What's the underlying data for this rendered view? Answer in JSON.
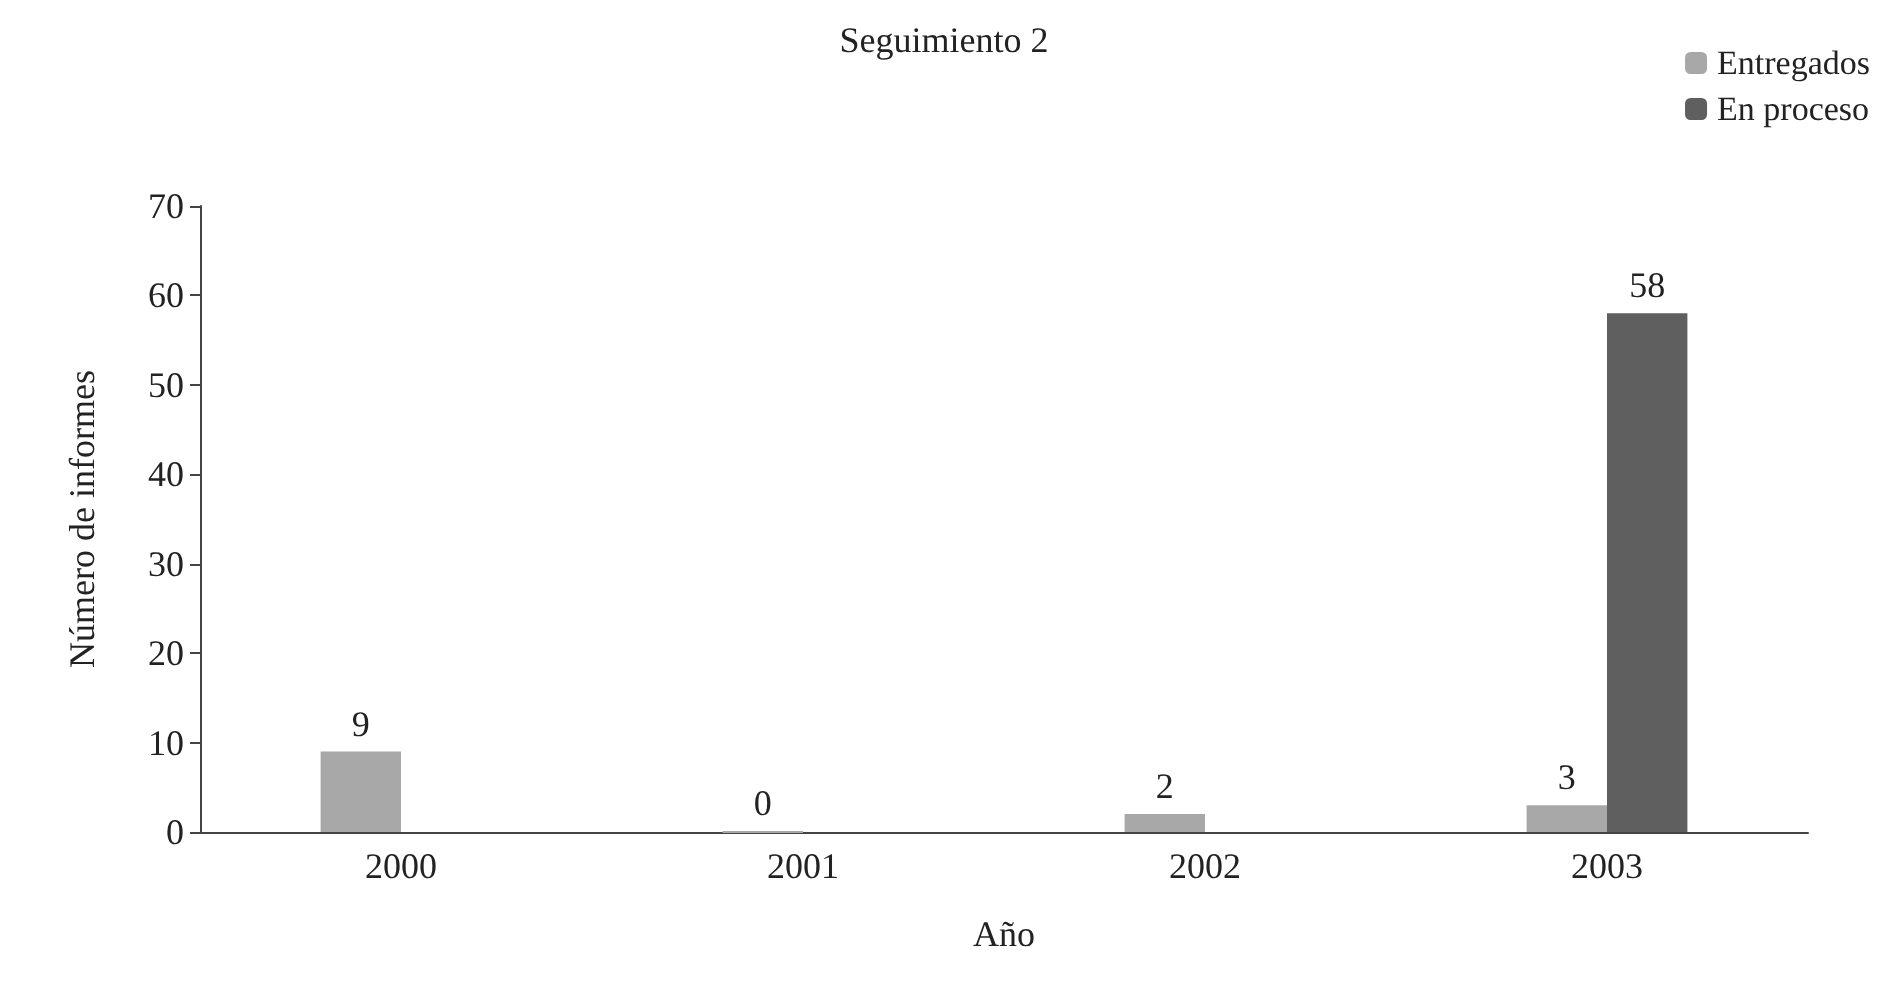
{
  "chart_data": {
    "type": "bar",
    "title": "Seguimiento 2",
    "xlabel": "Año",
    "ylabel": "Número de informes",
    "categories": [
      "2000",
      "2001",
      "2002",
      "2003"
    ],
    "series": [
      {
        "name": "Entregados",
        "color": "#a8a8a8",
        "values": [
          9,
          0,
          2,
          3
        ],
        "value_labels": [
          "9",
          "0",
          "2",
          "3"
        ]
      },
      {
        "name": "En proceso",
        "color": "#5f5f5f",
        "values": [
          null,
          null,
          null,
          58
        ],
        "value_labels": [
          null,
          null,
          null,
          "58"
        ]
      }
    ],
    "ylim": [
      0,
      70
    ],
    "yticks": [
      0,
      10,
      20,
      30,
      40,
      50,
      60,
      70
    ],
    "grid": false,
    "legend": "top right"
  }
}
